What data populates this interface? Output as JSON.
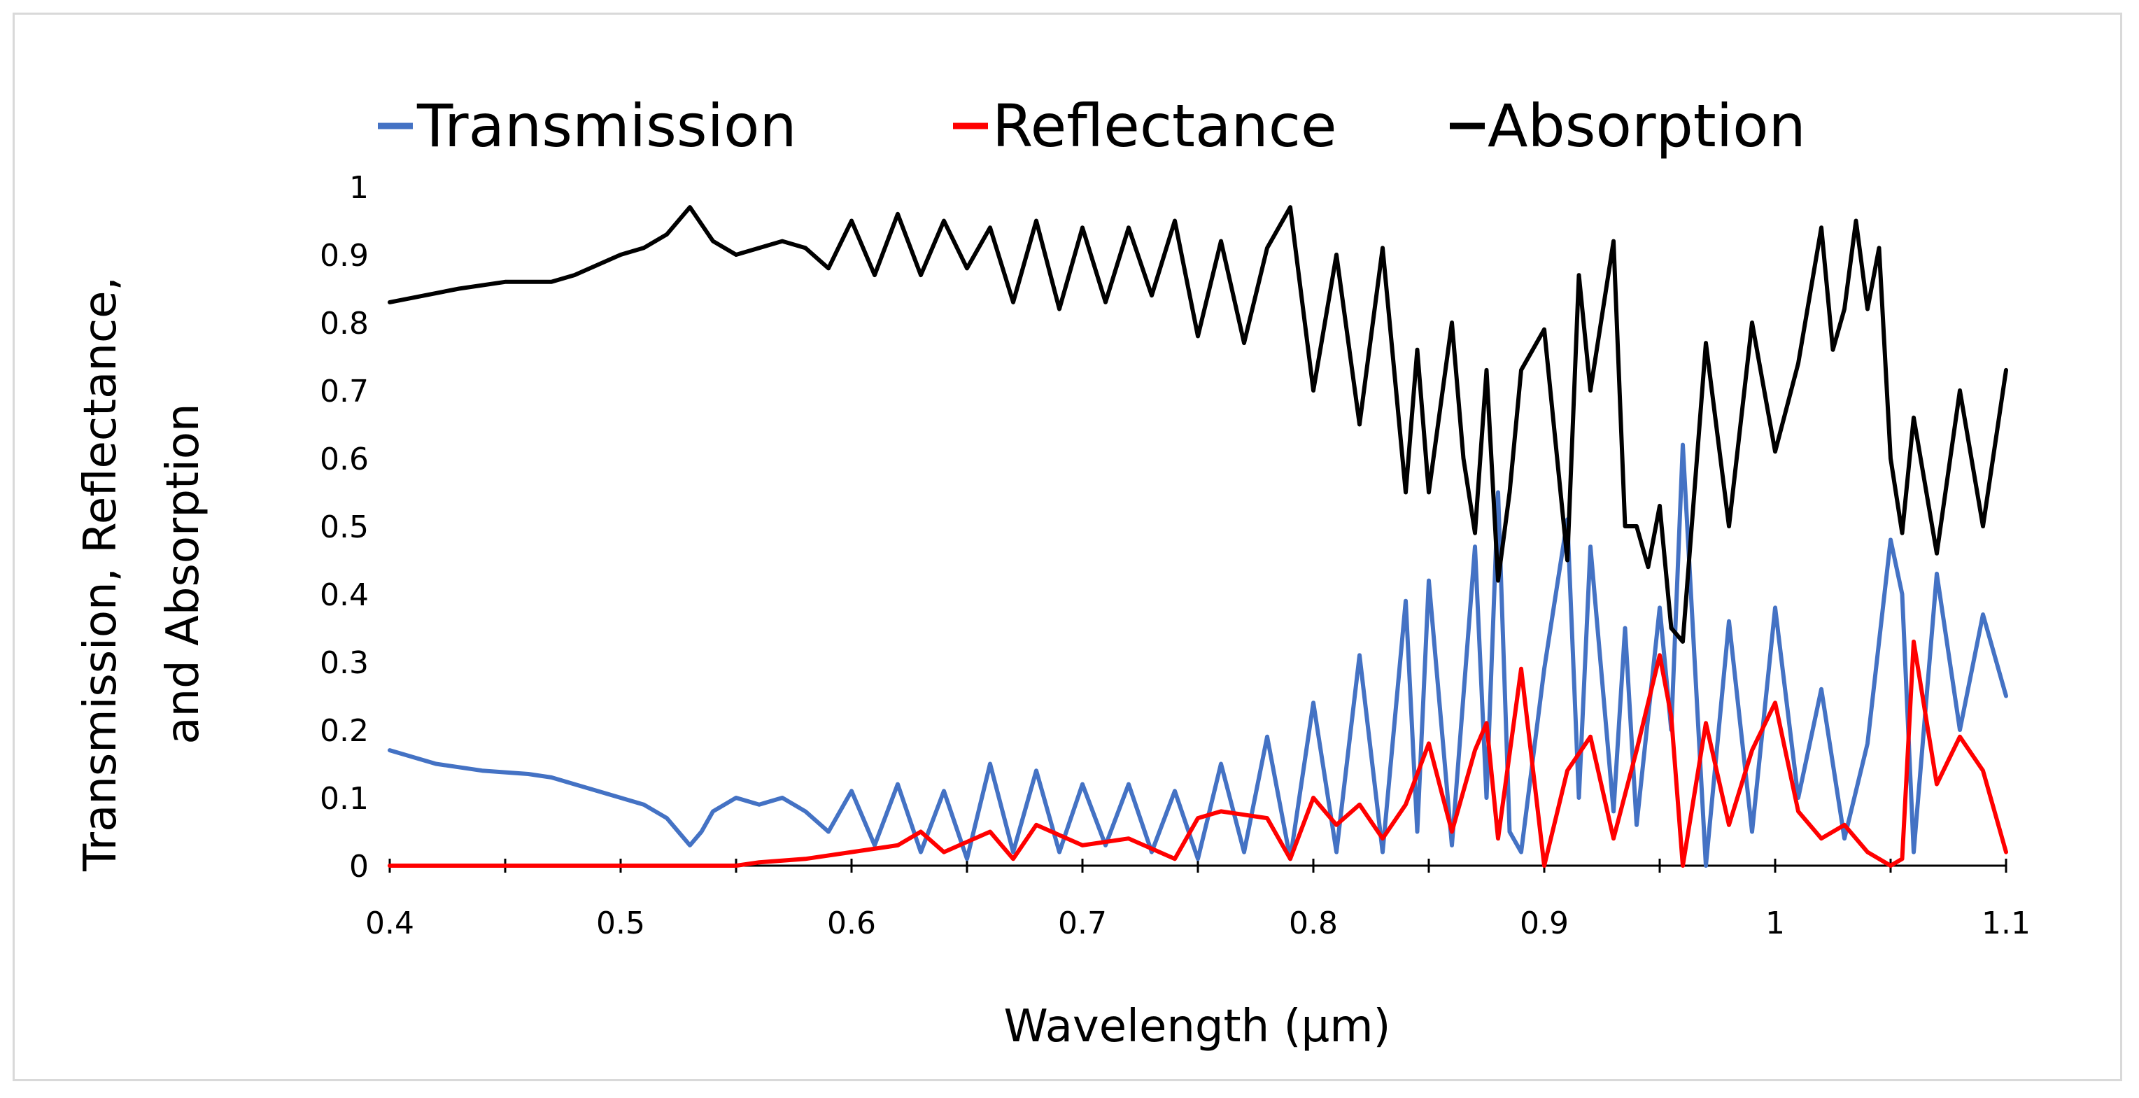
{
  "chart_data": {
    "type": "line",
    "title": "",
    "xlabel": "Wavelength (µm)",
    "ylabel_lines": [
      "Transmission, Reflectance,",
      "and Absorption"
    ],
    "xlim": [
      0.4,
      1.1
    ],
    "ylim": [
      0,
      1
    ],
    "xticks": [
      "0.4",
      "0.5",
      "0.6",
      "0.7",
      "0.8",
      "0.9",
      "1",
      "1.1"
    ],
    "yticks": [
      "0",
      "0.1",
      "0.2",
      "0.3",
      "0.4",
      "0.5",
      "0.6",
      "0.7",
      "0.8",
      "0.9",
      "1"
    ],
    "grid": false,
    "legend_position": "top",
    "series": [
      {
        "name": "Transmission",
        "color": "#4472c4",
        "x": [
          0.4,
          0.42,
          0.44,
          0.46,
          0.47,
          0.48,
          0.5,
          0.51,
          0.52,
          0.525,
          0.53,
          0.535,
          0.54,
          0.55,
          0.56,
          0.57,
          0.58,
          0.59,
          0.6,
          0.61,
          0.62,
          0.63,
          0.64,
          0.65,
          0.66,
          0.67,
          0.68,
          0.69,
          0.7,
          0.71,
          0.72,
          0.73,
          0.74,
          0.75,
          0.76,
          0.77,
          0.78,
          0.79,
          0.8,
          0.81,
          0.82,
          0.83,
          0.84,
          0.845,
          0.85,
          0.86,
          0.87,
          0.875,
          0.88,
          0.885,
          0.89,
          0.9,
          0.91,
          0.915,
          0.92,
          0.93,
          0.935,
          0.94,
          0.95,
          0.955,
          0.96,
          0.97,
          0.98,
          0.99,
          1.0,
          1.01,
          1.02,
          1.03,
          1.04,
          1.05,
          1.055,
          1.06,
          1.07,
          1.08,
          1.09,
          1.1
        ],
        "y": [
          0.17,
          0.15,
          0.14,
          0.135,
          0.13,
          0.12,
          0.1,
          0.09,
          0.07,
          0.05,
          0.03,
          0.05,
          0.08,
          0.1,
          0.09,
          0.1,
          0.08,
          0.05,
          0.11,
          0.03,
          0.12,
          0.02,
          0.11,
          0.01,
          0.15,
          0.02,
          0.14,
          0.02,
          0.12,
          0.03,
          0.12,
          0.02,
          0.11,
          0.01,
          0.15,
          0.02,
          0.19,
          0.01,
          0.24,
          0.02,
          0.31,
          0.02,
          0.39,
          0.05,
          0.42,
          0.03,
          0.47,
          0.1,
          0.55,
          0.05,
          0.02,
          0.29,
          0.51,
          0.1,
          0.47,
          0.08,
          0.35,
          0.06,
          0.38,
          0.2,
          0.62,
          0.0,
          0.36,
          0.05,
          0.38,
          0.1,
          0.26,
          0.04,
          0.18,
          0.48,
          0.4,
          0.02,
          0.43,
          0.2,
          0.37,
          0.25
        ]
      },
      {
        "name": "Reflectance",
        "color": "#ff0000",
        "x": [
          0.4,
          0.45,
          0.5,
          0.55,
          0.56,
          0.58,
          0.6,
          0.62,
          0.63,
          0.64,
          0.66,
          0.67,
          0.68,
          0.7,
          0.72,
          0.74,
          0.75,
          0.76,
          0.78,
          0.79,
          0.8,
          0.81,
          0.82,
          0.83,
          0.84,
          0.85,
          0.86,
          0.87,
          0.875,
          0.88,
          0.89,
          0.9,
          0.91,
          0.92,
          0.93,
          0.94,
          0.95,
          0.955,
          0.96,
          0.97,
          0.98,
          0.99,
          1.0,
          1.01,
          1.02,
          1.03,
          1.04,
          1.05,
          1.055,
          1.06,
          1.07,
          1.08,
          1.09,
          1.1
        ],
        "y": [
          0,
          0,
          0,
          0,
          0.005,
          0.01,
          0.02,
          0.03,
          0.05,
          0.02,
          0.05,
          0.01,
          0.06,
          0.03,
          0.04,
          0.01,
          0.07,
          0.08,
          0.07,
          0.01,
          0.1,
          0.06,
          0.09,
          0.04,
          0.09,
          0.18,
          0.05,
          0.17,
          0.21,
          0.04,
          0.29,
          0.0,
          0.14,
          0.19,
          0.04,
          0.17,
          0.31,
          0.22,
          0.0,
          0.21,
          0.06,
          0.17,
          0.24,
          0.08,
          0.04,
          0.06,
          0.02,
          0.0,
          0.01,
          0.33,
          0.12,
          0.19,
          0.14,
          0.02
        ]
      },
      {
        "name": "Absorption",
        "color": "#000000",
        "x": [
          0.4,
          0.43,
          0.45,
          0.47,
          0.48,
          0.5,
          0.51,
          0.52,
          0.53,
          0.54,
          0.55,
          0.57,
          0.58,
          0.59,
          0.6,
          0.61,
          0.62,
          0.63,
          0.64,
          0.65,
          0.66,
          0.67,
          0.68,
          0.69,
          0.7,
          0.71,
          0.72,
          0.73,
          0.74,
          0.75,
          0.76,
          0.77,
          0.78,
          0.79,
          0.8,
          0.81,
          0.82,
          0.83,
          0.84,
          0.845,
          0.85,
          0.86,
          0.865,
          0.87,
          0.875,
          0.88,
          0.885,
          0.89,
          0.9,
          0.91,
          0.915,
          0.92,
          0.93,
          0.935,
          0.94,
          0.945,
          0.95,
          0.955,
          0.96,
          0.97,
          0.98,
          0.99,
          1.0,
          1.01,
          1.02,
          1.025,
          1.03,
          1.035,
          1.04,
          1.045,
          1.05,
          1.055,
          1.06,
          1.07,
          1.08,
          1.09,
          1.1
        ],
        "y": [
          0.83,
          0.85,
          0.86,
          0.86,
          0.87,
          0.9,
          0.91,
          0.93,
          0.97,
          0.92,
          0.9,
          0.92,
          0.91,
          0.88,
          0.95,
          0.87,
          0.96,
          0.87,
          0.95,
          0.88,
          0.94,
          0.83,
          0.95,
          0.82,
          0.94,
          0.83,
          0.94,
          0.84,
          0.95,
          0.78,
          0.92,
          0.77,
          0.91,
          0.97,
          0.7,
          0.9,
          0.65,
          0.91,
          0.55,
          0.76,
          0.55,
          0.8,
          0.6,
          0.49,
          0.73,
          0.42,
          0.55,
          0.73,
          0.79,
          0.45,
          0.87,
          0.7,
          0.92,
          0.5,
          0.5,
          0.44,
          0.53,
          0.35,
          0.33,
          0.77,
          0.5,
          0.8,
          0.61,
          0.74,
          0.94,
          0.76,
          0.82,
          0.95,
          0.82,
          0.91,
          0.6,
          0.49,
          0.66,
          0.46,
          0.7,
          0.5,
          0.73
        ]
      }
    ]
  }
}
